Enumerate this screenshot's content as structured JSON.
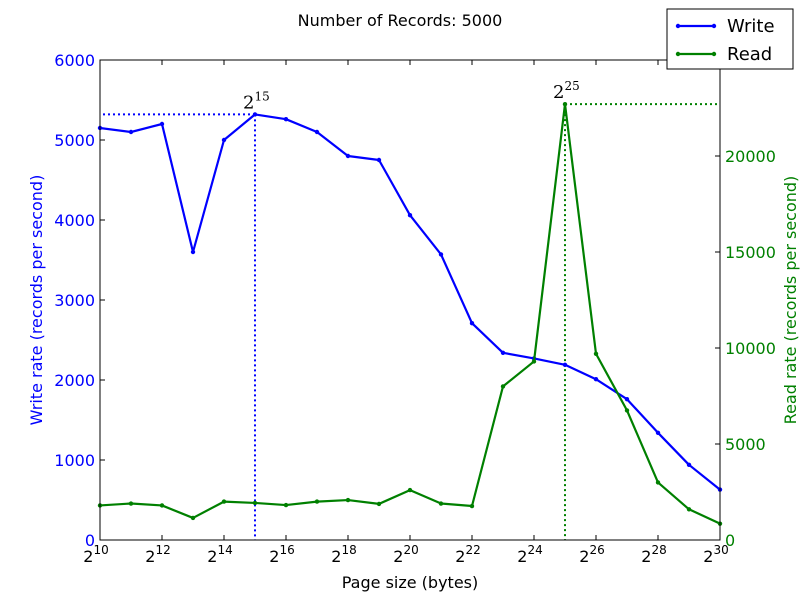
{
  "chart_data": {
    "type": "line",
    "title": "Number of Records: 5000",
    "xlabel": "Page size (bytes)",
    "ylabel_left": "Write rate (records per second)",
    "ylabel_right": "Read rate (records per second)",
    "x_tick_base": "2",
    "x_tick_exponents": [
      "10",
      "12",
      "14",
      "16",
      "18",
      "20",
      "22",
      "24",
      "26",
      "28",
      "30"
    ],
    "x_exponents": [
      10,
      11,
      12,
      13,
      14,
      15,
      16,
      17,
      18,
      19,
      20,
      21,
      22,
      23,
      24,
      25,
      26,
      27,
      28,
      29,
      30
    ],
    "xlim": [
      10,
      30
    ],
    "ylim_left": [
      0,
      6000
    ],
    "ylim_right": [
      0,
      25000
    ],
    "left_ticks": [
      "0",
      "1000",
      "2000",
      "3000",
      "4000",
      "5000",
      "6000"
    ],
    "right_ticks": [
      "0",
      "5000",
      "10000",
      "15000",
      "20000"
    ],
    "colors": {
      "write": "#0000ff",
      "read": "#008000"
    },
    "series": [
      {
        "name": "Write",
        "axis": "left",
        "values": [
          5150,
          5100,
          5200,
          3600,
          5000,
          5320,
          5260,
          5100,
          4800,
          4750,
          4060,
          3570,
          2710,
          2340,
          2270,
          2190,
          2010,
          1760,
          1340,
          940,
          630
        ]
      },
      {
        "name": "Read",
        "axis": "right",
        "values": [
          1800,
          1900,
          1800,
          1150,
          2000,
          1930,
          1820,
          2000,
          2080,
          1880,
          2600,
          1900,
          1770,
          8000,
          9300,
          22700,
          9700,
          6750,
          3000,
          1600,
          850
        ]
      }
    ],
    "annotations": [
      {
        "series": "Write",
        "x_exponent": 15,
        "value": 5320,
        "base": "2",
        "exp": "15"
      },
      {
        "series": "Read",
        "x_exponent": 25,
        "value": 22700,
        "base": "2",
        "exp": "25"
      }
    ],
    "legend_position": "top-right"
  }
}
